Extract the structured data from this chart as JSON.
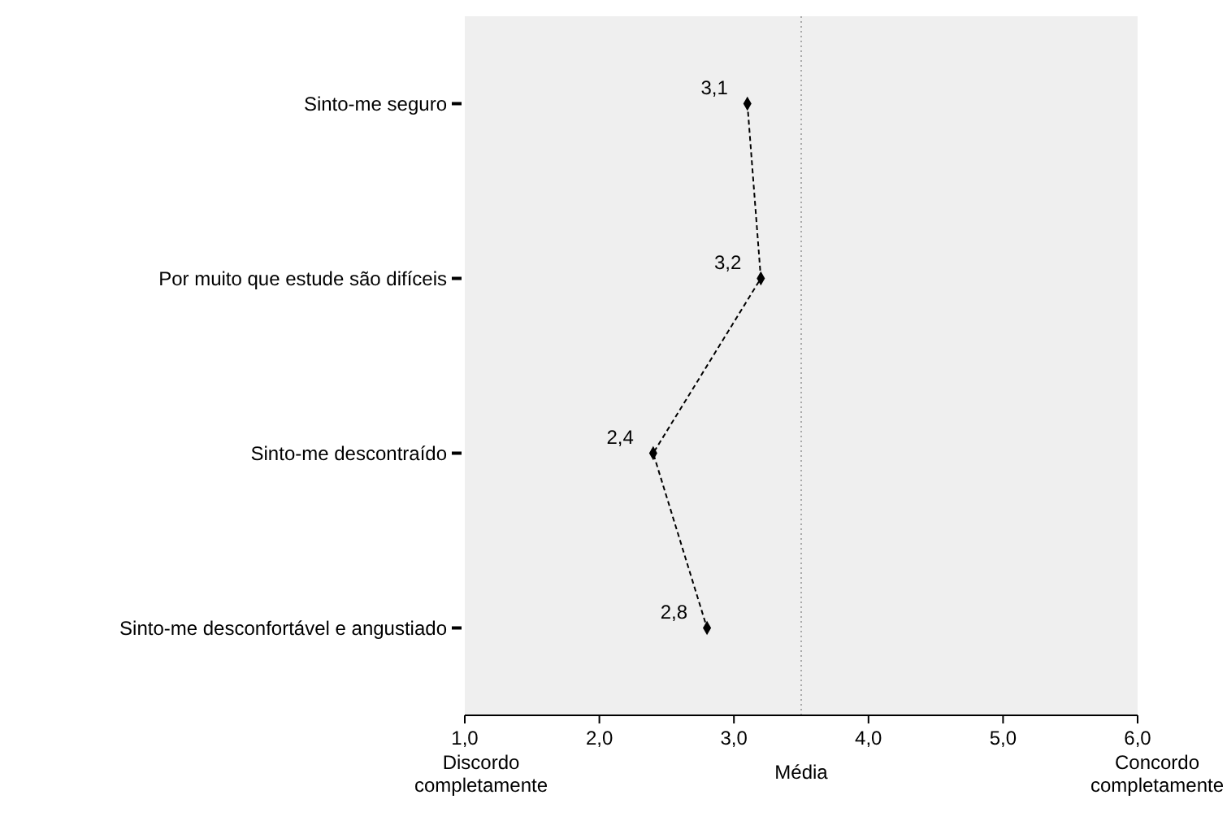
{
  "chart_data": {
    "type": "line",
    "orientation": "horizontal",
    "xlabel": "Média",
    "categories": [
      "Sinto-me seguro",
      "Por muito que estude são difíceis",
      "Sinto-me descontraído",
      "Sinto-me desconfortável e angustiado"
    ],
    "series": [
      {
        "color": "#000000",
        "values": [
          3.1,
          3.2,
          2.4,
          2.8
        ],
        "value_labels": [
          "3,1",
          "3,2",
          "2,4",
          "2,8"
        ]
      }
    ],
    "xlim": [
      1,
      6
    ],
    "xticks": [
      {
        "value": 1,
        "label": "1,0"
      },
      {
        "value": 2,
        "label": "2,0"
      },
      {
        "value": 3,
        "label": "3,0"
      },
      {
        "value": 4,
        "label": "4,0"
      },
      {
        "value": 5,
        "label": "5,0"
      },
      {
        "value": 6,
        "label": "6,0"
      }
    ],
    "ref_lines": [
      {
        "axis": "x",
        "value": 3.5,
        "color": "#aaaaaa",
        "line_style": "dotted"
      }
    ],
    "annotations": [
      "Discordo completamente",
      "Concordo completamente"
    ],
    "marker": "diamond",
    "line_style": "dashed",
    "grid": false
  }
}
